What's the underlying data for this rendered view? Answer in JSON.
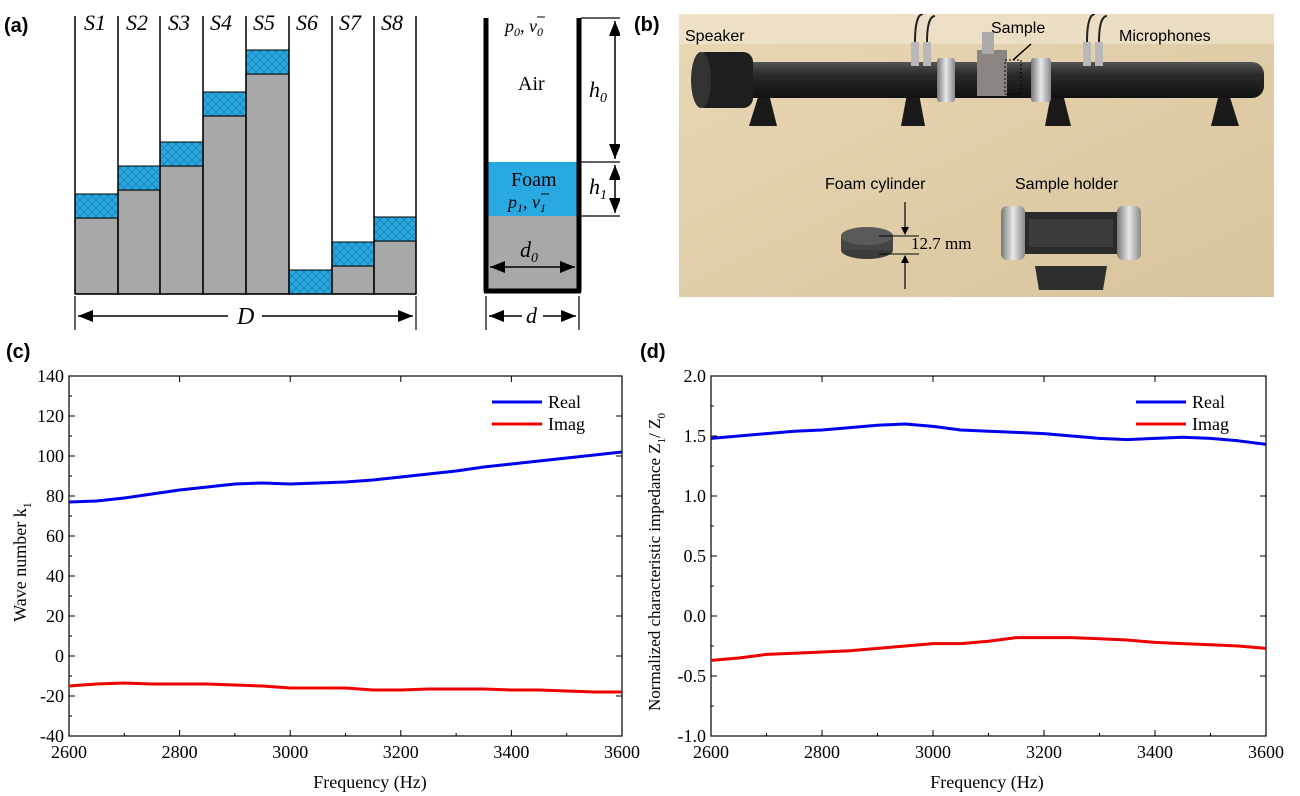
{
  "panel_a": {
    "letter": "(a)",
    "stair_labels": [
      "S1",
      "S2",
      "S3",
      "S4",
      "S5",
      "S6",
      "S7",
      "S8"
    ],
    "width_label": "D",
    "cell": {
      "top_label_p": "p",
      "top_label_p_sub": "0",
      "top_label_v": "v",
      "top_label_v_sub": "0",
      "air_label": "Air",
      "foam_label": "Foam",
      "foam_label_p": "p",
      "foam_label_p_sub": "1",
      "foam_label_v": "v",
      "foam_label_v_sub": "1",
      "h0": "h",
      "h0_sub": "0",
      "h1": "h",
      "h1_sub": "1",
      "d0": "d",
      "d0_sub": "0",
      "d": "d"
    }
  },
  "panel_b": {
    "letter": "(b)",
    "labels": {
      "speaker": "Speaker",
      "sample": "Sample",
      "microphones": "Microphones",
      "foam_cylinder": "Foam cylinder",
      "sample_holder": "Sample holder",
      "dimension": "12.7 mm"
    }
  },
  "panel_c": {
    "letter": "(c)",
    "chart_data": {
      "type": "line",
      "xlabel": "Frequency (Hz)",
      "ylabel": "Wave number k",
      "ylabel_sub": "1",
      "xlim": [
        2600,
        3600
      ],
      "ylim": [
        -40,
        140
      ],
      "xticks": [
        2600,
        2800,
        3000,
        3200,
        3400,
        3600
      ],
      "yticks": [
        -40,
        -20,
        0,
        20,
        40,
        60,
        80,
        100,
        120,
        140
      ],
      "legend_position": "top-right",
      "series": [
        {
          "name": "Real",
          "color": "#0000ee",
          "x": [
            2600,
            2650,
            2700,
            2750,
            2800,
            2850,
            2900,
            2950,
            3000,
            3050,
            3100,
            3150,
            3200,
            3250,
            3300,
            3350,
            3400,
            3450,
            3500,
            3550,
            3600
          ],
          "y": [
            77,
            77.5,
            79,
            81,
            83,
            84.5,
            86,
            86.5,
            86,
            86.5,
            87,
            88,
            89.5,
            91,
            92.5,
            94.5,
            96,
            97.5,
            99,
            100.5,
            102
          ]
        },
        {
          "name": "Imag",
          "color": "#ee0000",
          "x": [
            2600,
            2650,
            2700,
            2750,
            2800,
            2850,
            2900,
            2950,
            3000,
            3050,
            3100,
            3150,
            3200,
            3250,
            3300,
            3350,
            3400,
            3450,
            3500,
            3550,
            3600
          ],
          "y": [
            -15,
            -14,
            -13.5,
            -14,
            -14,
            -14,
            -14.5,
            -15,
            -16,
            -16,
            -16,
            -17,
            -17,
            -16.5,
            -16.5,
            -16.5,
            -17,
            -17,
            -17.5,
            -18,
            -18
          ]
        }
      ]
    }
  },
  "panel_d": {
    "letter": "(d)",
    "chart_data": {
      "type": "line",
      "xlabel": "Frequency (Hz)",
      "ylabel": "Normalized characteristic impedance Z",
      "ylabel_sub1": "1",
      "ylabel_mid": "/ Z",
      "ylabel_sub2": "0",
      "xlim": [
        2600,
        3600
      ],
      "ylim": [
        -1.0,
        2.0
      ],
      "xticks": [
        2600,
        2800,
        3000,
        3200,
        3400,
        3600
      ],
      "yticks": [
        "-1.0",
        "-0.5",
        "0.0",
        "0.5",
        "1.0",
        "1.5",
        "2.0"
      ],
      "legend_position": "top-right",
      "series": [
        {
          "name": "Real",
          "color": "#0000ee",
          "x": [
            2600,
            2650,
            2700,
            2750,
            2800,
            2850,
            2900,
            2950,
            3000,
            3050,
            3100,
            3150,
            3200,
            3250,
            3300,
            3350,
            3400,
            3450,
            3500,
            3550,
            3600
          ],
          "y": [
            1.48,
            1.5,
            1.52,
            1.54,
            1.55,
            1.57,
            1.59,
            1.6,
            1.58,
            1.55,
            1.54,
            1.53,
            1.52,
            1.5,
            1.48,
            1.47,
            1.48,
            1.49,
            1.48,
            1.46,
            1.43
          ]
        },
        {
          "name": "Imag",
          "color": "#ee0000",
          "x": [
            2600,
            2650,
            2700,
            2750,
            2800,
            2850,
            2900,
            2950,
            3000,
            3050,
            3100,
            3150,
            3200,
            3250,
            3300,
            3350,
            3400,
            3450,
            3500,
            3550,
            3600
          ],
          "y": [
            -0.37,
            -0.35,
            -0.32,
            -0.31,
            -0.3,
            -0.29,
            -0.27,
            -0.25,
            -0.23,
            -0.23,
            -0.21,
            -0.18,
            -0.18,
            -0.18,
            -0.19,
            -0.2,
            -0.22,
            -0.23,
            -0.24,
            -0.25,
            -0.27
          ]
        }
      ]
    }
  },
  "colors": {
    "foam": "#29a9e1",
    "solid": "#a8a8a8",
    "real_line": "#0000ee",
    "imag_line": "#ee0000"
  }
}
